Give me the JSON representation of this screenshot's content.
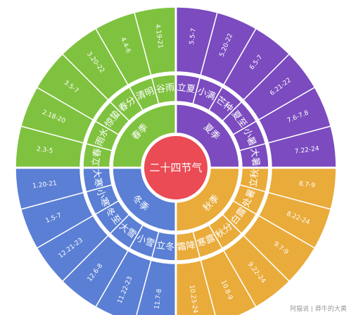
{
  "center_label": "二十四节气",
  "watermark": "阿猫说 | 莽牛的大黄",
  "colors": {
    "spring": "#7fc23f",
    "summer": "#7b4bbf",
    "autumn": "#e9ab3a",
    "winter": "#5a7fd4",
    "center": "#ea4b55",
    "ring_line": "#ffffff"
  },
  "seasons": [
    {
      "key": "spring",
      "label": "春季",
      "terms": [
        {
          "name": "立春",
          "date": "2.3-5"
        },
        {
          "name": "雨水",
          "date": "2.18-20"
        },
        {
          "name": "惊蛰",
          "date": "3.5-7"
        },
        {
          "name": "春分",
          "date": "3.20-22"
        },
        {
          "name": "清明",
          "date": "4.4-6"
        },
        {
          "name": "谷雨",
          "date": "4.19-21"
        }
      ]
    },
    {
      "key": "summer",
      "label": "夏季",
      "terms": [
        {
          "name": "立夏",
          "date": "5.5-7"
        },
        {
          "name": "小满",
          "date": "5.20-22"
        },
        {
          "name": "芒种",
          "date": "6.5-7"
        },
        {
          "name": "夏至",
          "date": "6.21-22"
        },
        {
          "name": "小暑",
          "date": "7.6-7.8"
        },
        {
          "name": "大暑",
          "date": "7.22-24"
        }
      ]
    },
    {
      "key": "autumn",
      "label": "秋季",
      "terms": [
        {
          "name": "立秋",
          "date": "8.7-9"
        },
        {
          "name": "处暑",
          "date": "8.22-24"
        },
        {
          "name": "白露",
          "date": "9.7-9"
        },
        {
          "name": "秋分",
          "date": "9.22-24"
        },
        {
          "name": "寒露",
          "date": "10.8-9"
        },
        {
          "name": "霜降",
          "date": "10.23-24"
        }
      ]
    },
    {
      "key": "winter",
      "label": "冬季",
      "terms": [
        {
          "name": "立冬",
          "date": "11.7-8"
        },
        {
          "name": "小雪",
          "date": "11.22-23"
        },
        {
          "name": "大雪",
          "date": "12.6-8"
        },
        {
          "name": "冬至",
          "date": "12.21-23"
        },
        {
          "name": "小寒",
          "date": "1.5-7"
        },
        {
          "name": "大寒",
          "date": "1.20-21"
        }
      ]
    }
  ]
}
